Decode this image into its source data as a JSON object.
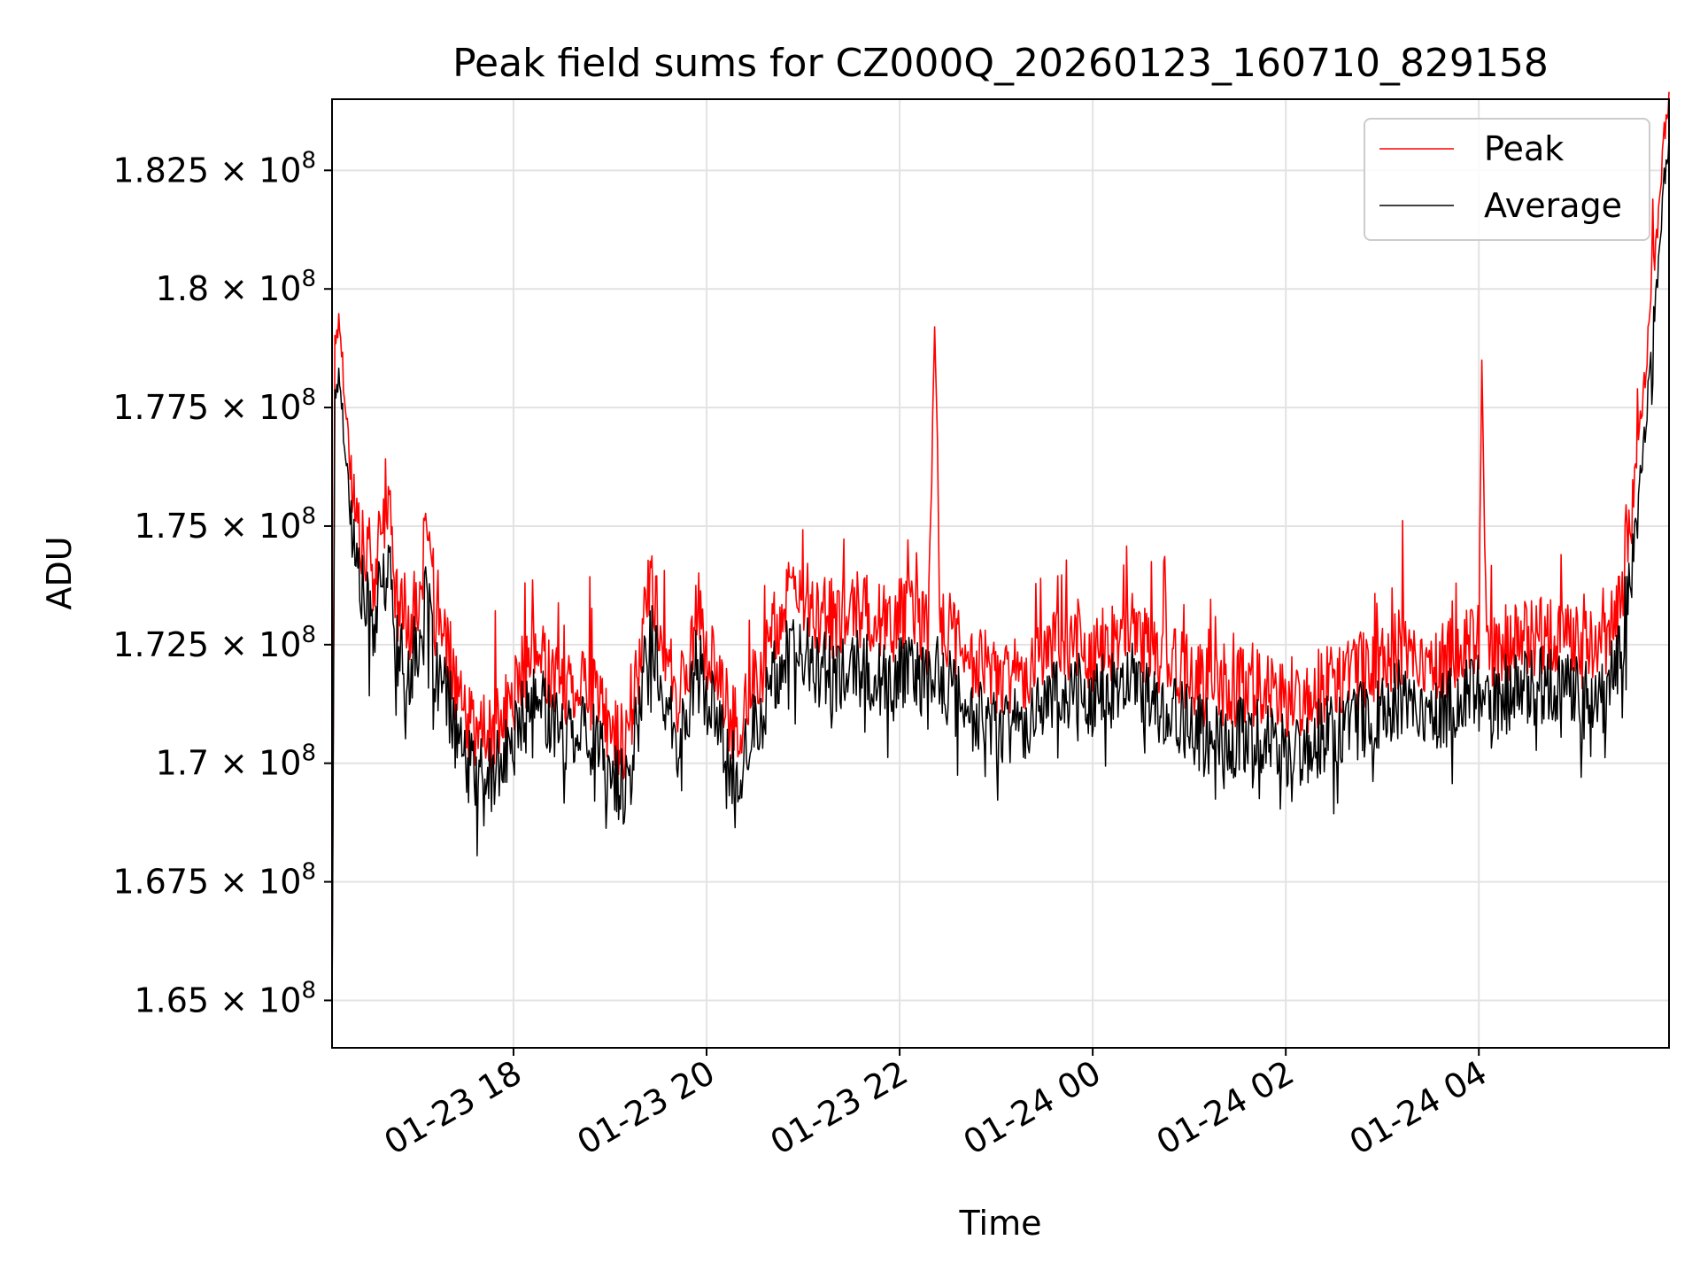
{
  "chart_data": {
    "type": "line",
    "title": "Peak field sums for CZ000Q_20260123_160710_829158",
    "xlabel": "Time",
    "ylabel": "ADU",
    "x_range_hours": [
      16.12,
      5.97
    ],
    "x_ticks": [
      {
        "hour": 18,
        "label": "01-23 18"
      },
      {
        "hour": 20,
        "label": "01-23 20"
      },
      {
        "hour": 22,
        "label": "01-23 22"
      },
      {
        "hour": 24,
        "label": "01-24 00"
      },
      {
        "hour": 26,
        "label": "01-24 02"
      },
      {
        "hour": 28,
        "label": "01-24 04"
      }
    ],
    "ylim": [
      164000000,
      184000000
    ],
    "y_ticks": [
      {
        "value": 165000000,
        "mantissa": "1.65",
        "exponent": "8"
      },
      {
        "value": 167500000,
        "mantissa": "1.675",
        "exponent": "8"
      },
      {
        "value": 170000000,
        "mantissa": "1.7",
        "exponent": "8"
      },
      {
        "value": 172500000,
        "mantissa": "1.725",
        "exponent": "8"
      },
      {
        "value": 175000000,
        "mantissa": "1.75",
        "exponent": "8"
      },
      {
        "value": 177500000,
        "mantissa": "1.775",
        "exponent": "8"
      },
      {
        "value": 180000000,
        "mantissa": "1.8",
        "exponent": "8"
      },
      {
        "value": 182500000,
        "mantissa": "1.825",
        "exponent": "8"
      }
    ],
    "grid": true,
    "legend": {
      "placement": "top-right",
      "entries": [
        {
          "name": "Peak",
          "color": "#ff0000"
        },
        {
          "name": "Average",
          "color": "#000000"
        }
      ]
    },
    "series": [
      {
        "name": "Peak",
        "color": "#ff0000",
        "points": [
          [
            16.12,
            164.8
          ],
          [
            16.15,
            178.8
          ],
          [
            16.2,
            179.0
          ],
          [
            16.28,
            176.8
          ],
          [
            16.35,
            175.2
          ],
          [
            16.45,
            174.1
          ],
          [
            16.55,
            173.6
          ],
          [
            16.7,
            175.3
          ],
          [
            16.8,
            173.0
          ],
          [
            16.9,
            172.6
          ],
          [
            17.0,
            173.1
          ],
          [
            17.1,
            174.3
          ],
          [
            17.2,
            172.6
          ],
          [
            17.35,
            171.9
          ],
          [
            17.5,
            170.6
          ],
          [
            17.7,
            170.2
          ],
          [
            17.9,
            170.7
          ],
          [
            18.1,
            171.7
          ],
          [
            18.3,
            172.0
          ],
          [
            18.5,
            171.3
          ],
          [
            18.7,
            171.6
          ],
          [
            18.9,
            170.9
          ],
          [
            19.05,
            170.3
          ],
          [
            19.2,
            170.2
          ],
          [
            19.4,
            173.6
          ],
          [
            19.55,
            172.5
          ],
          [
            19.7,
            170.8
          ],
          [
            19.9,
            172.9
          ],
          [
            20.1,
            171.5
          ],
          [
            20.3,
            170.4
          ],
          [
            20.5,
            171.4
          ],
          [
            20.75,
            172.9
          ],
          [
            21.0,
            173.2
          ],
          [
            21.3,
            172.7
          ],
          [
            21.6,
            173.0
          ],
          [
            21.9,
            172.6
          ],
          [
            22.1,
            173.1
          ],
          [
            22.3,
            172.4
          ],
          [
            22.36,
            179.2
          ],
          [
            22.42,
            172.8
          ],
          [
            22.7,
            172.0
          ],
          [
            23.0,
            171.6
          ],
          [
            23.3,
            171.7
          ],
          [
            23.6,
            172.4
          ],
          [
            24.0,
            172.1
          ],
          [
            24.4,
            172.5
          ],
          [
            24.8,
            171.9
          ],
          [
            25.2,
            171.3
          ],
          [
            25.6,
            171.4
          ],
          [
            26.0,
            171.0
          ],
          [
            26.4,
            171.4
          ],
          [
            26.8,
            171.7
          ],
          [
            27.2,
            172.2
          ],
          [
            27.6,
            171.9
          ],
          [
            28.0,
            172.3
          ],
          [
            28.03,
            178.5
          ],
          [
            28.08,
            172.0
          ],
          [
            28.4,
            172.4
          ],
          [
            28.8,
            172.5
          ],
          [
            29.1,
            172.1
          ],
          [
            29.3,
            172.3
          ],
          [
            29.45,
            172.9
          ],
          [
            29.6,
            175.4
          ],
          [
            29.75,
            178.6
          ],
          [
            29.85,
            181.1
          ],
          [
            29.93,
            183.2
          ],
          [
            29.97,
            183.8
          ]
        ]
      },
      {
        "name": "Average",
        "color": "#000000",
        "points": [
          [
            16.12,
            164.6
          ],
          [
            16.15,
            178.0
          ],
          [
            16.2,
            178.2
          ],
          [
            16.28,
            176.2
          ],
          [
            16.35,
            174.6
          ],
          [
            16.45,
            173.5
          ],
          [
            16.55,
            173.0
          ],
          [
            16.7,
            174.4
          ],
          [
            16.8,
            172.4
          ],
          [
            16.9,
            172.0
          ],
          [
            17.0,
            172.5
          ],
          [
            17.1,
            173.5
          ],
          [
            17.2,
            172.0
          ],
          [
            17.35,
            171.2
          ],
          [
            17.5,
            170.0
          ],
          [
            17.7,
            169.8
          ],
          [
            17.9,
            170.1
          ],
          [
            18.1,
            171.1
          ],
          [
            18.3,
            171.4
          ],
          [
            18.5,
            170.7
          ],
          [
            18.7,
            171.0
          ],
          [
            18.9,
            170.3
          ],
          [
            19.05,
            169.7
          ],
          [
            19.2,
            169.6
          ],
          [
            19.4,
            172.9
          ],
          [
            19.55,
            171.8
          ],
          [
            19.7,
            170.2
          ],
          [
            19.9,
            172.3
          ],
          [
            20.1,
            170.9
          ],
          [
            20.3,
            169.8
          ],
          [
            20.5,
            170.8
          ],
          [
            20.75,
            172.2
          ],
          [
            21.0,
            172.4
          ],
          [
            21.3,
            171.9
          ],
          [
            21.6,
            172.1
          ],
          [
            21.9,
            171.7
          ],
          [
            22.1,
            172.2
          ],
          [
            22.3,
            171.6
          ],
          [
            22.36,
            172.1
          ],
          [
            22.42,
            171.9
          ],
          [
            22.7,
            171.2
          ],
          [
            23.0,
            170.9
          ],
          [
            23.3,
            171.0
          ],
          [
            23.6,
            171.7
          ],
          [
            24.0,
            171.5
          ],
          [
            24.4,
            171.8
          ],
          [
            24.8,
            171.2
          ],
          [
            25.2,
            170.6
          ],
          [
            25.6,
            170.7
          ],
          [
            26.0,
            170.3
          ],
          [
            26.4,
            170.7
          ],
          [
            26.8,
            171.0
          ],
          [
            27.2,
            171.5
          ],
          [
            27.6,
            171.2
          ],
          [
            28.0,
            171.6
          ],
          [
            28.03,
            171.8
          ],
          [
            28.08,
            171.3
          ],
          [
            28.4,
            171.7
          ],
          [
            28.8,
            171.8
          ],
          [
            29.1,
            171.4
          ],
          [
            29.3,
            171.6
          ],
          [
            29.45,
            172.2
          ],
          [
            29.6,
            174.6
          ],
          [
            29.75,
            177.8
          ],
          [
            29.85,
            180.4
          ],
          [
            29.93,
            182.6
          ],
          [
            29.97,
            183.2
          ]
        ]
      }
    ]
  }
}
